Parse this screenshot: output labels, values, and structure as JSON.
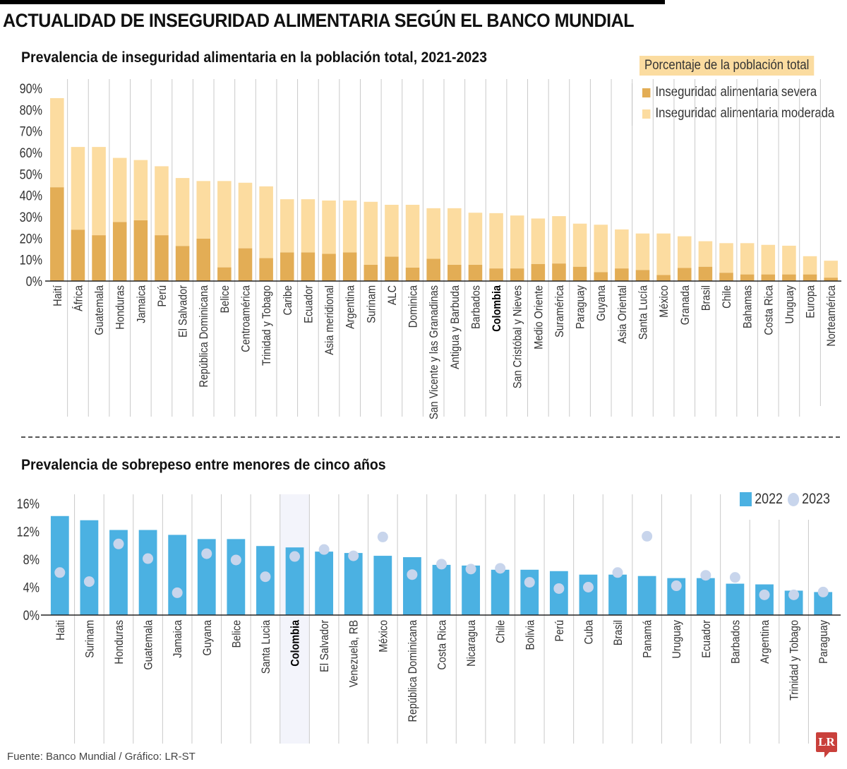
{
  "header": {
    "title": "ACTUALIDAD DE INSEGURIDAD ALIMENTARIA SEGÚN EL BANCO MUNDIAL"
  },
  "footer": {
    "source": "Fuente: Banco Mundial / Gráfico: LR-ST",
    "logo": "LR"
  },
  "colors": {
    "severe": "#e3ad55",
    "moderate": "#fcdca0",
    "bar2022": "#4bb1e2",
    "dot2023": "#c8d5ec",
    "highlight": "#f3f4fb"
  },
  "chart_data": [
    {
      "type": "bar",
      "stacked": true,
      "title": "Prevalencia de inseguridad alimentaria en la población total, 2021-2023",
      "legend_title": "Porcentaje de la población total",
      "legend_position": "top-right",
      "ylabel": "",
      "xlabel": "",
      "ylim": [
        0,
        90
      ],
      "yticks": [
        "0%",
        "10%",
        "20%",
        "30%",
        "40%",
        "50%",
        "60%",
        "70%",
        "80%",
        "90%"
      ],
      "highlight": "Colombia",
      "categories": [
        "Haití",
        "África",
        "Guatemala",
        "Honduras",
        "Jamaica",
        "Perú",
        "El Salvador",
        "República Dominicana",
        "Belice",
        "Centroamérica",
        "Trinidad y Tobago",
        "Caribe",
        "Ecuador",
        "Asia meridional",
        "Argentina",
        "Surinam",
        "ALC",
        "Dominica",
        "San Vicente y las Granadinas",
        "Antigua y Barbuda",
        "Barbados",
        "Colombia",
        "San Cristóbal y Nieves",
        "Medio Oriente",
        "Suramérica",
        "Paraguay",
        "Guyana",
        "Asia Oriental",
        "Santa Lucía",
        "México",
        "Granada",
        "Brasil",
        "Chile",
        "Bahamas",
        "Costa Rica",
        "Uruguay",
        "Europa",
        "Norteamérica"
      ],
      "series": [
        {
          "name": "Inseguridad alimentaria severa",
          "values": [
            43.8,
            24.0,
            21.4,
            27.6,
            28.4,
            21.4,
            16.4,
            19.8,
            6.4,
            15.3,
            10.7,
            13.4,
            13.4,
            12.7,
            13.4,
            7.6,
            11.4,
            6.3,
            10.4,
            7.6,
            7.6,
            5.9,
            5.9,
            8.0,
            8.2,
            6.7,
            4.2,
            5.9,
            5.2,
            2.8,
            6.1,
            6.7,
            3.9,
            3.1,
            3.1,
            3.1,
            3.1,
            1.6
          ]
        },
        {
          "name": "Inseguridad alimentaria moderada",
          "values": [
            41.6,
            38.6,
            41.2,
            29.9,
            28.1,
            32.2,
            31.7,
            26.9,
            40.3,
            30.6,
            33.5,
            24.8,
            24.8,
            24.9,
            24.2,
            29.4,
            24.2,
            29.3,
            23.6,
            26.4,
            24.3,
            25.8,
            24.7,
            21.2,
            22.1,
            20.1,
            22.1,
            18.2,
            17.0,
            19.4,
            14.8,
            11.9,
            13.8,
            14.6,
            13.8,
            13.4,
            8.5,
            7.9
          ]
        }
      ],
      "totals": [
        85.4,
        62.6,
        62.6,
        57.5,
        56.5,
        53.6,
        48.1,
        46.7,
        46.7,
        45.9,
        44.2,
        38.2,
        38.2,
        37.6,
        37.6,
        37.0,
        35.6,
        35.6,
        34.0,
        34.0,
        31.9,
        31.7,
        30.6,
        29.2,
        30.3,
        26.8,
        26.3,
        24.1,
        22.2,
        22.2,
        20.9,
        18.6,
        17.7,
        17.7,
        16.9,
        16.5,
        11.6,
        9.5
      ]
    },
    {
      "type": "bar",
      "title": "Prevalencia de sobrepeso entre menores de cinco años",
      "legend_position": "top-right",
      "ylabel": "",
      "xlabel": "",
      "ylim": [
        0,
        16
      ],
      "yticks": [
        "0%",
        "4%",
        "8%",
        "12%",
        "16%"
      ],
      "highlight": "Colombia",
      "categories": [
        "Haiti",
        "Surinam",
        "Honduras",
        "Guatemala",
        "Jamaica",
        "Guyana",
        "Belice",
        "Santa Lucia",
        "Colombia",
        "El Salvador",
        "Venezuela, RB",
        "México",
        "República Dominicana",
        "Costa Rica",
        "Nicaragua",
        "Chile",
        "Bolivia",
        "Perú",
        "Cuba",
        "Brasil",
        "Panamá",
        "Uruguay",
        "Ecuador",
        "Barbados",
        "Argentina",
        "Trinidad y Tobago",
        "Paraguay"
      ],
      "series": [
        {
          "name": "2022",
          "marker": "bar",
          "values": [
            14.2,
            13.6,
            12.2,
            12.2,
            11.5,
            10.9,
            10.9,
            9.9,
            9.7,
            9.1,
            8.9,
            8.5,
            8.3,
            7.2,
            7.1,
            6.5,
            6.5,
            6.3,
            5.8,
            5.8,
            5.6,
            5.3,
            5.3,
            4.5,
            4.4,
            3.5,
            3.3
          ]
        },
        {
          "name": "2023",
          "marker": "dot",
          "values": [
            6.1,
            4.8,
            10.2,
            8.1,
            3.2,
            8.8,
            7.9,
            5.5,
            8.4,
            9.4,
            8.5,
            11.2,
            5.8,
            7.3,
            6.6,
            6.7,
            4.7,
            3.8,
            4.0,
            6.1,
            11.3,
            4.2,
            5.7,
            5.4,
            2.9,
            2.9,
            3.3
          ]
        }
      ]
    }
  ]
}
